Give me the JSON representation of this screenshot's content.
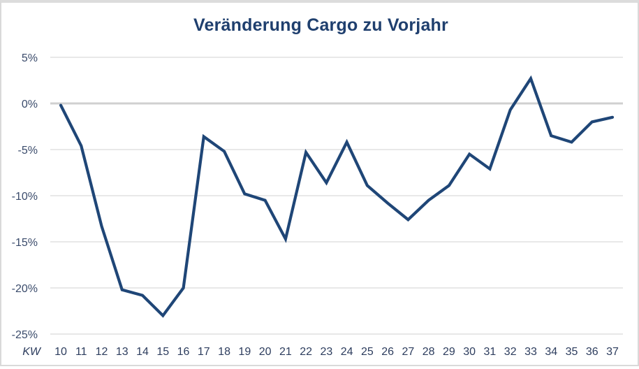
{
  "chart_data": {
    "type": "line",
    "title": "Veränderung Cargo zu Vorjahr",
    "xlabel": "KW",
    "ylabel": "",
    "categories": [
      "10",
      "11",
      "12",
      "13",
      "14",
      "15",
      "16",
      "17",
      "18",
      "19",
      "20",
      "21",
      "22",
      "23",
      "24",
      "25",
      "26",
      "27",
      "28",
      "29",
      "30",
      "31",
      "32",
      "33",
      "34",
      "35",
      "36",
      "37"
    ],
    "series": [
      {
        "name": "Veränderung Cargo zu Vorjahr",
        "color": "#1f4677",
        "values": [
          -0.2,
          -4.6,
          -13.3,
          -20.2,
          -20.8,
          -23.0,
          -20.0,
          -3.6,
          -5.2,
          -9.8,
          -10.5,
          -14.7,
          -5.3,
          -8.6,
          -4.2,
          -8.9,
          -10.8,
          -12.6,
          -10.5,
          -8.9,
          -5.5,
          -7.1,
          -0.7,
          2.7,
          -3.5,
          -4.2,
          -2.0,
          -1.5
        ]
      }
    ],
    "ylim": [
      -25,
      5
    ],
    "yticks": [
      5,
      0,
      -5,
      -10,
      -15,
      -20,
      -25
    ],
    "ytick_labels": [
      "5%",
      "0%",
      "-5%",
      "-10%",
      "-15%",
      "-20%",
      "-25%"
    ],
    "grid": true,
    "legend": "none",
    "unit": "%"
  },
  "colors": {
    "title": "#1f3f6e",
    "line": "#1f4677",
    "gridline": "#d9d9d9",
    "zero_line": "#d0d0d0",
    "tick_text": "#3a4b6b"
  }
}
